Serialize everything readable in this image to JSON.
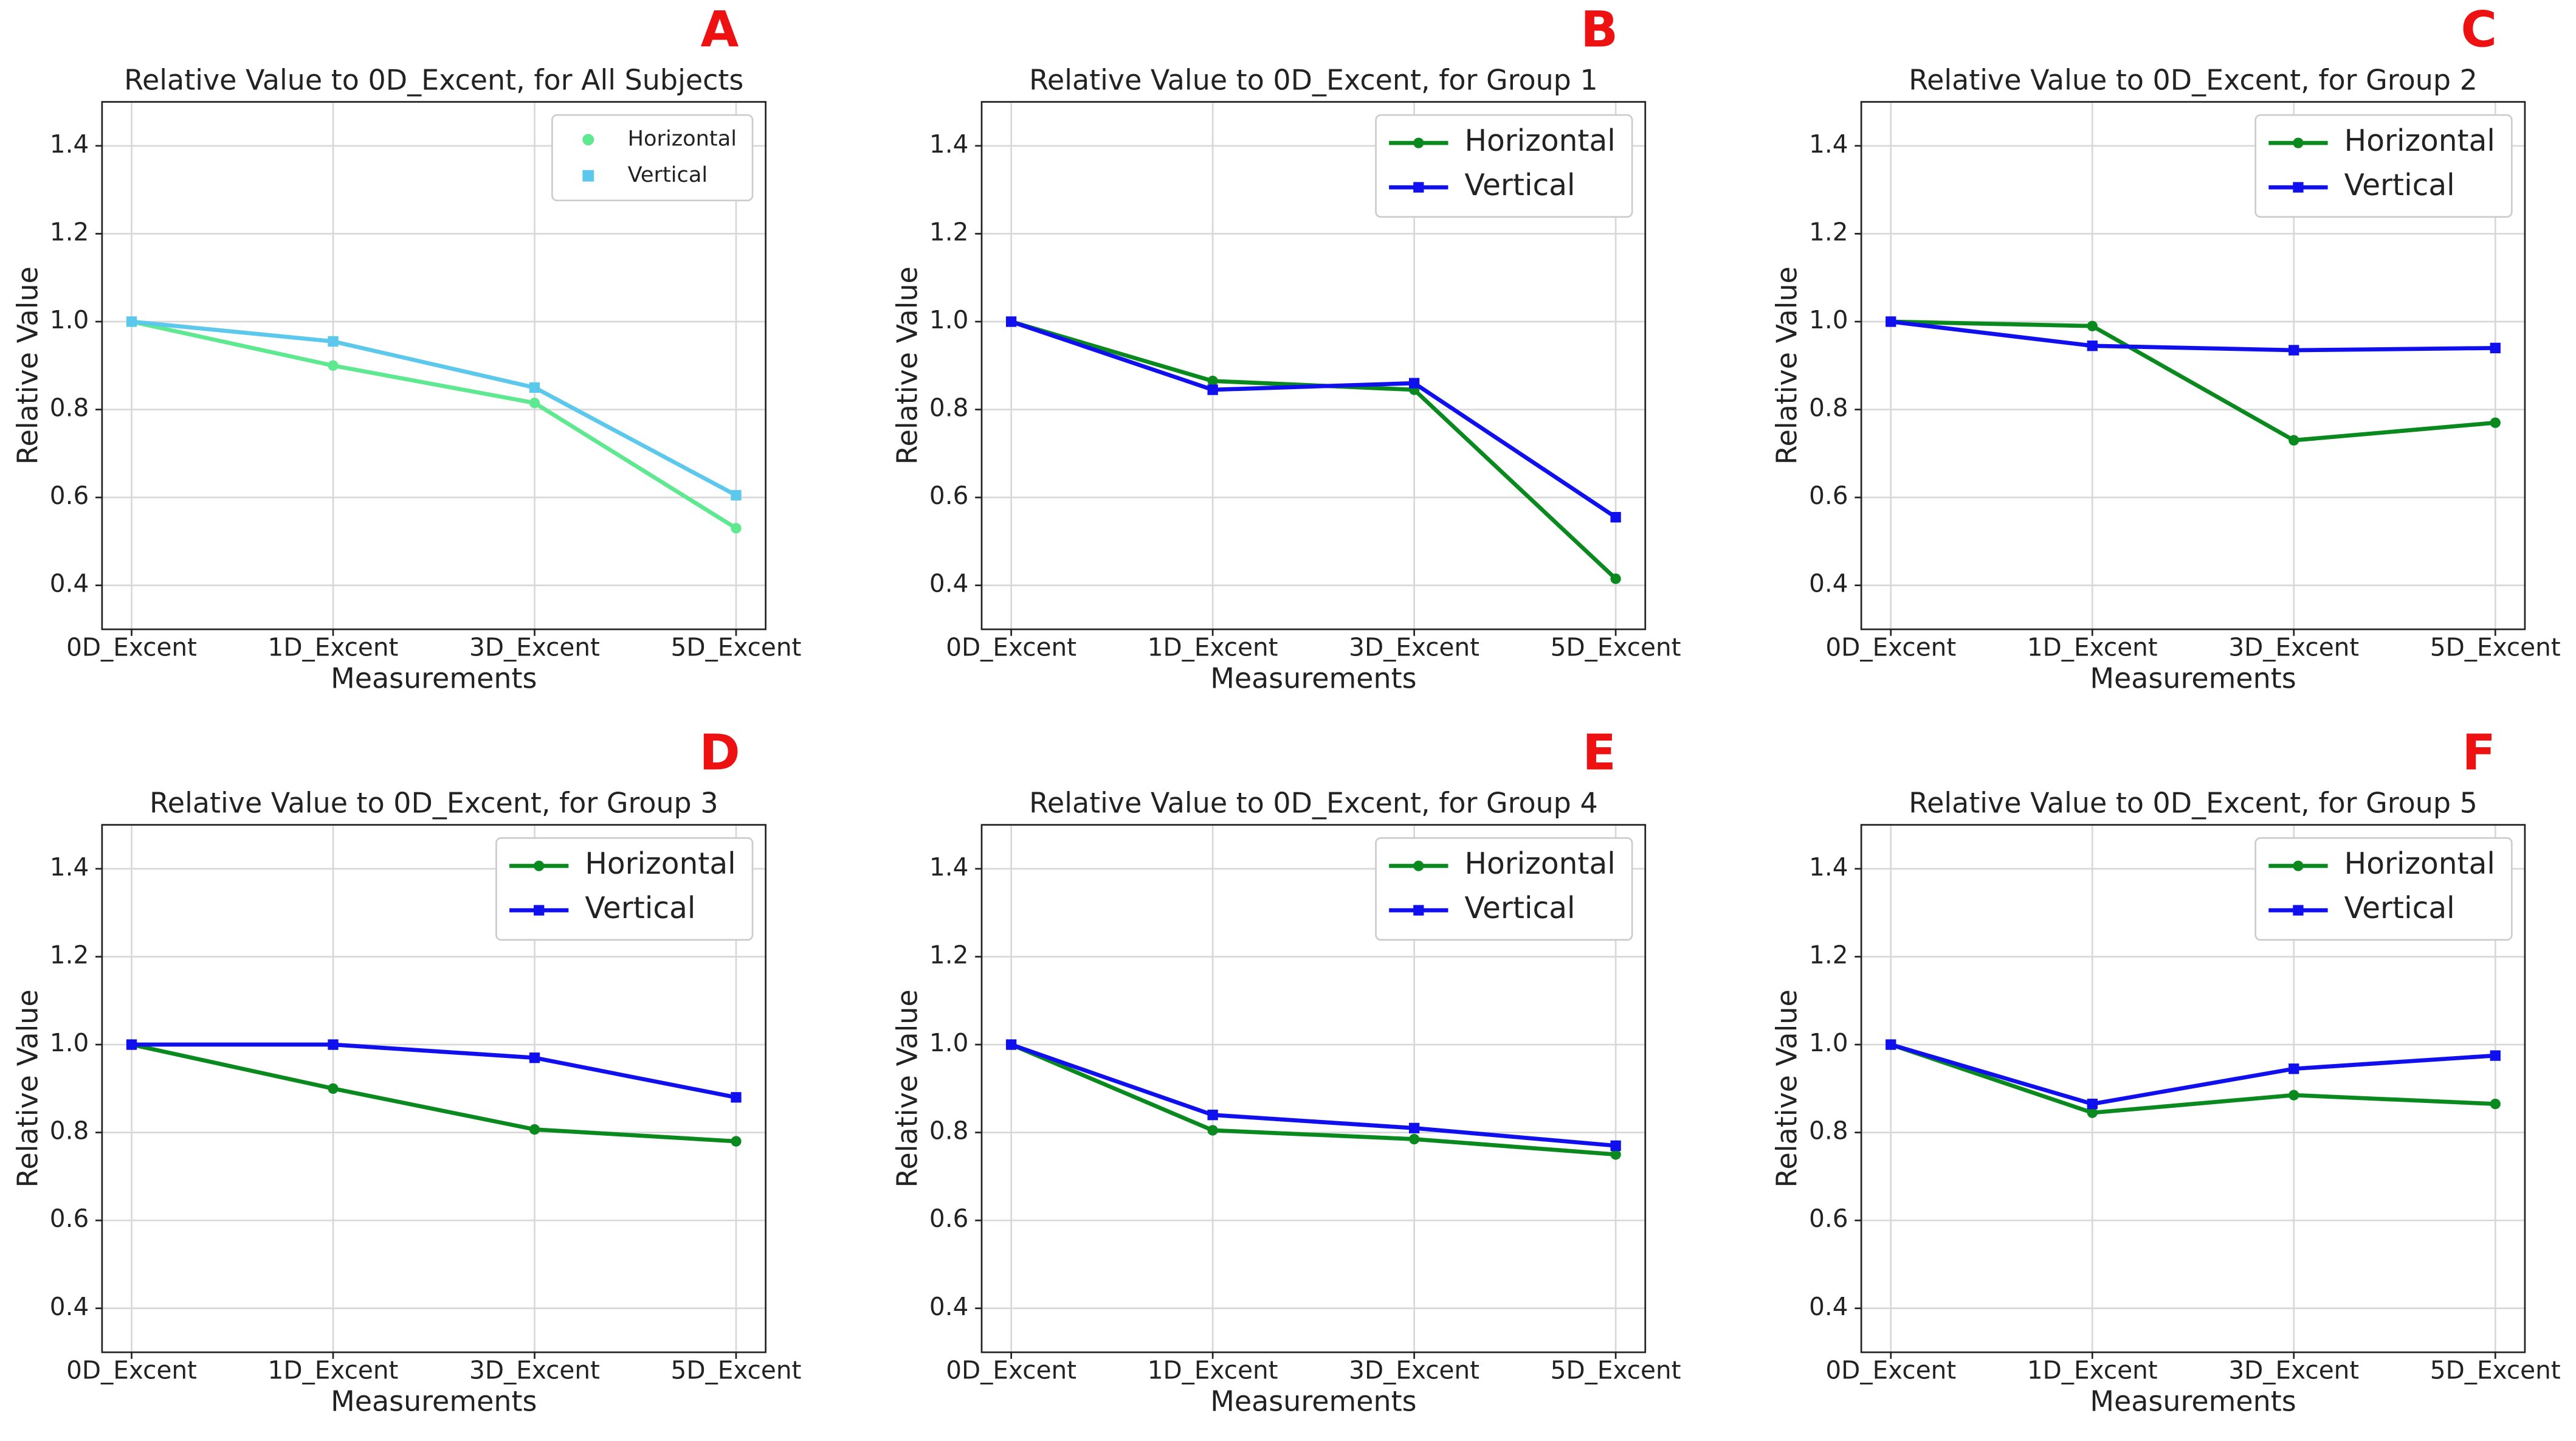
{
  "chart_data": [
    {
      "type": "line",
      "panel": "A",
      "title": "Relative Value to 0D_Excent, for All Subjects",
      "xlabel": "Measurements",
      "ylabel": "Relative Value",
      "categories": [
        "0D_Excent",
        "1D_Excent",
        "3D_Excent",
        "5D_Excent"
      ],
      "series": [
        {
          "name": "Horizontal",
          "color": "#5ee88f",
          "marker": "circle",
          "values": [
            1.0,
            0.9,
            0.815,
            0.53
          ]
        },
        {
          "name": "Vertical",
          "color": "#5bc8ec",
          "marker": "square",
          "values": [
            1.0,
            0.955,
            0.85,
            0.605
          ]
        }
      ],
      "ylim": [
        0.3,
        1.5
      ],
      "yticks": [
        0.4,
        0.6,
        0.8,
        {
          "value": 1,
          "label": "1.0"
        },
        1.2,
        1.4
      ],
      "grid": true,
      "legend": "upper right",
      "legend_style": "markers"
    },
    {
      "type": "line",
      "panel": "B",
      "title": "Relative Value to 0D_Excent, for Group 1",
      "xlabel": "Measurements",
      "ylabel": "Relative Value",
      "categories": [
        "0D_Excent",
        "1D_Excent",
        "3D_Excent",
        "5D_Excent"
      ],
      "series": [
        {
          "name": "Horizontal",
          "color": "#0a8a1e",
          "marker": "circle",
          "values": [
            1.0,
            0.865,
            0.845,
            0.415
          ]
        },
        {
          "name": "Vertical",
          "color": "#1010ee",
          "marker": "square",
          "values": [
            1.0,
            0.845,
            0.86,
            0.555
          ]
        }
      ],
      "ylim": [
        0.3,
        1.5
      ],
      "yticks": [
        0.4,
        0.6,
        0.8,
        {
          "value": 1,
          "label": "1.0"
        },
        1.2,
        1.4
      ],
      "grid": true,
      "legend": "upper right",
      "legend_style": "lines"
    },
    {
      "type": "line",
      "panel": "C",
      "title": "Relative Value to 0D_Excent, for Group 2",
      "xlabel": "Measurements",
      "ylabel": "Relative Value",
      "categories": [
        "0D_Excent",
        "1D_Excent",
        "3D_Excent",
        "5D_Excent"
      ],
      "series": [
        {
          "name": "Horizontal",
          "color": "#0a8a1e",
          "marker": "circle",
          "values": [
            1.0,
            0.99,
            0.73,
            0.77
          ]
        },
        {
          "name": "Vertical",
          "color": "#1010ee",
          "marker": "square",
          "values": [
            1.0,
            0.945,
            0.935,
            0.94
          ]
        }
      ],
      "ylim": [
        0.3,
        1.5
      ],
      "yticks": [
        0.4,
        0.6,
        0.8,
        {
          "value": 1,
          "label": "1.0"
        },
        1.2,
        1.4
      ],
      "grid": true,
      "legend": "upper right",
      "legend_style": "lines"
    },
    {
      "type": "line",
      "panel": "D",
      "title": "Relative Value to 0D_Excent, for Group 3",
      "xlabel": "Measurements",
      "ylabel": "Relative Value",
      "categories": [
        "0D_Excent",
        "1D_Excent",
        "3D_Excent",
        "5D_Excent"
      ],
      "series": [
        {
          "name": "Horizontal",
          "color": "#0a8a1e",
          "marker": "circle",
          "values": [
            1.0,
            0.9,
            0.807,
            0.78
          ]
        },
        {
          "name": "Vertical",
          "color": "#1010ee",
          "marker": "square",
          "values": [
            1.0,
            1.0,
            0.97,
            0.88
          ]
        }
      ],
      "ylim": [
        0.3,
        1.5
      ],
      "yticks": [
        0.4,
        0.6,
        0.8,
        {
          "value": 1,
          "label": "1.0"
        },
        1.2,
        1.4
      ],
      "grid": true,
      "legend": "upper right",
      "legend_style": "lines"
    },
    {
      "type": "line",
      "panel": "E",
      "title": "Relative Value to 0D_Excent, for Group 4",
      "xlabel": "Measurements",
      "ylabel": "Relative Value",
      "categories": [
        "0D_Excent",
        "1D_Excent",
        "3D_Excent",
        "5D_Excent"
      ],
      "series": [
        {
          "name": "Horizontal",
          "color": "#0a8a1e",
          "marker": "circle",
          "values": [
            1.0,
            0.805,
            0.785,
            0.75
          ]
        },
        {
          "name": "Vertical",
          "color": "#1010ee",
          "marker": "square",
          "values": [
            1.0,
            0.84,
            0.81,
            0.77
          ]
        }
      ],
      "ylim": [
        0.3,
        1.5
      ],
      "yticks": [
        0.4,
        0.6,
        0.8,
        {
          "value": 1,
          "label": "1.0"
        },
        1.2,
        1.4
      ],
      "grid": true,
      "legend": "upper right",
      "legend_style": "lines"
    },
    {
      "type": "line",
      "panel": "F",
      "title": "Relative Value to 0D_Excent, for Group 5",
      "xlabel": "Measurements",
      "ylabel": "Relative Value",
      "categories": [
        "0D_Excent",
        "1D_Excent",
        "3D_Excent",
        "5D_Excent"
      ],
      "series": [
        {
          "name": "Horizontal",
          "color": "#0a8a1e",
          "marker": "circle",
          "values": [
            1.0,
            0.845,
            0.885,
            0.865
          ]
        },
        {
          "name": "Vertical",
          "color": "#1010ee",
          "marker": "square",
          "values": [
            1.0,
            0.865,
            0.945,
            0.975
          ]
        }
      ],
      "ylim": [
        0.3,
        1.5
      ],
      "yticks": [
        0.4,
        0.6,
        0.8,
        {
          "value": 1,
          "label": "1.0"
        },
        1.2,
        1.4
      ],
      "grid": true,
      "legend": "upper right",
      "legend_style": "lines"
    }
  ]
}
